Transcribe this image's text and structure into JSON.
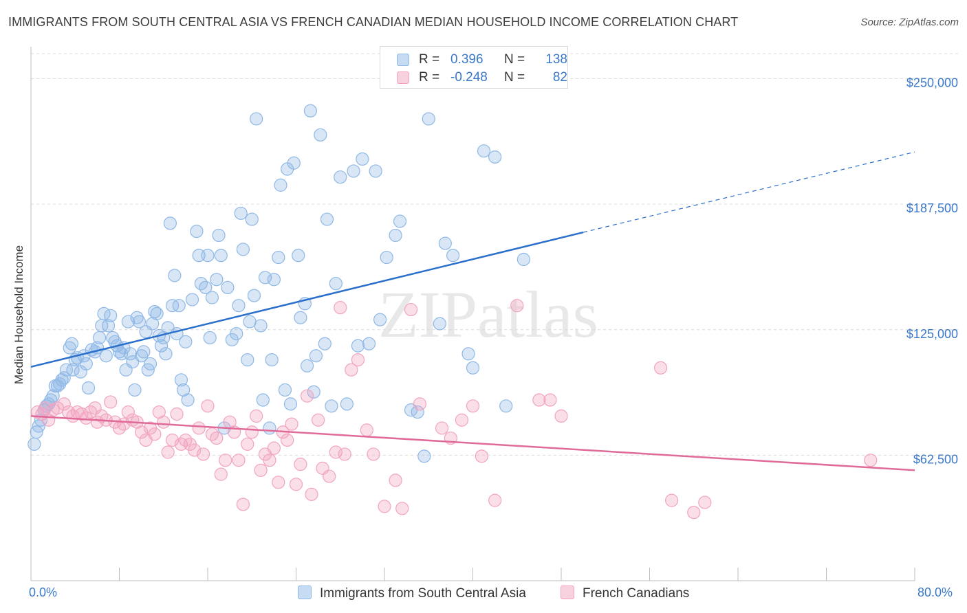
{
  "title": "IMMIGRANTS FROM SOUTH CENTRAL ASIA VS FRENCH CANADIAN MEDIAN HOUSEHOLD INCOME CORRELATION CHART",
  "source": "Source: ZipAtlas.com",
  "watermark": "ZIPatlas",
  "legend": {
    "rows": [
      {
        "r_label": "R =",
        "r_value": "0.396",
        "n_label": "N =",
        "n_value": "138",
        "color": "#8fb8e6"
      },
      {
        "r_label": "R =",
        "r_value": "-0.248",
        "n_label": "N =",
        "n_value": "82",
        "color": "#f2a3bf"
      }
    ]
  },
  "bottom_legend": {
    "series1": "Immigrants from South Central Asia",
    "series2": "French Canadians"
  },
  "chart_data": {
    "type": "scatter",
    "xlabel": "",
    "ylabel": "Median Household Income",
    "xlim": [
      0,
      80
    ],
    "ylim": [
      0,
      262500
    ],
    "x_tick_labels": [
      "0.0%",
      "80.0%"
    ],
    "y_ticks": [
      62500,
      125000,
      187500,
      250000
    ],
    "y_tick_labels": [
      "$62,500",
      "$125,000",
      "$187,500",
      "$250,000"
    ],
    "grid": true,
    "legend_placement": "top-center",
    "series": [
      {
        "name": "Immigrants from South Central Asia",
        "color": "#8fb8e6",
        "line_color": "#2a6fcb",
        "trend": {
          "x0": 0,
          "y0": 106500,
          "x1": 50,
          "y1": 173500,
          "x_dash_end": 80,
          "y_dash_end": 213500
        },
        "points": [
          [
            0.3,
            68
          ],
          [
            0.5,
            74
          ],
          [
            0.7,
            77
          ],
          [
            0.9,
            80
          ],
          [
            1.2,
            85
          ],
          [
            1.4,
            87
          ],
          [
            1.6,
            88
          ],
          [
            1.8,
            90
          ],
          [
            2.0,
            92
          ],
          [
            2.2,
            97
          ],
          [
            2.4,
            97
          ],
          [
            2.6,
            98
          ],
          [
            2.8,
            100
          ],
          [
            3.0,
            101
          ],
          [
            3.2,
            105
          ],
          [
            3.5,
            116
          ],
          [
            3.7,
            118
          ],
          [
            3.8,
            105
          ],
          [
            4.0,
            110
          ],
          [
            4.2,
            111
          ],
          [
            4.5,
            104
          ],
          [
            4.8,
            112
          ],
          [
            5.0,
            108
          ],
          [
            5.2,
            96
          ],
          [
            5.5,
            115
          ],
          [
            5.8,
            114
          ],
          [
            6.0,
            116
          ],
          [
            6.2,
            121
          ],
          [
            6.4,
            127
          ],
          [
            6.6,
            133
          ],
          [
            6.8,
            112
          ],
          [
            7.0,
            127
          ],
          [
            7.2,
            132
          ],
          [
            7.4,
            121
          ],
          [
            7.6,
            119
          ],
          [
            7.8,
            117
          ],
          [
            8.0,
            114
          ],
          [
            8.2,
            113
          ],
          [
            8.4,
            116
          ],
          [
            8.6,
            105
          ],
          [
            8.8,
            129
          ],
          [
            9.0,
            113
          ],
          [
            9.2,
            109
          ],
          [
            9.4,
            95
          ],
          [
            9.6,
            131
          ],
          [
            9.8,
            129
          ],
          [
            10.0,
            112
          ],
          [
            10.2,
            114
          ],
          [
            10.4,
            124
          ],
          [
            10.6,
            105
          ],
          [
            10.8,
            108
          ],
          [
            11.0,
            128
          ],
          [
            11.2,
            134
          ],
          [
            11.4,
            133
          ],
          [
            11.6,
            122
          ],
          [
            11.8,
            117
          ],
          [
            12.0,
            121
          ],
          [
            12.2,
            113
          ],
          [
            12.4,
            126
          ],
          [
            12.6,
            178
          ],
          [
            12.8,
            137
          ],
          [
            13.0,
            152
          ],
          [
            13.2,
            123
          ],
          [
            13.4,
            137
          ],
          [
            13.6,
            100
          ],
          [
            13.8,
            95
          ],
          [
            14.0,
            119
          ],
          [
            14.2,
            90
          ],
          [
            14.6,
            140
          ],
          [
            15.0,
            174
          ],
          [
            15.2,
            162
          ],
          [
            15.4,
            148
          ],
          [
            15.8,
            146
          ],
          [
            16.0,
            162
          ],
          [
            16.2,
            121
          ],
          [
            16.4,
            141
          ],
          [
            16.8,
            150
          ],
          [
            17.0,
            172
          ],
          [
            17.2,
            162
          ],
          [
            17.5,
            76
          ],
          [
            17.8,
            146
          ],
          [
            18.2,
            120
          ],
          [
            18.6,
            123
          ],
          [
            18.8,
            137
          ],
          [
            19.0,
            183
          ],
          [
            19.2,
            165
          ],
          [
            19.6,
            110
          ],
          [
            19.8,
            129
          ],
          [
            20.0,
            180
          ],
          [
            20.2,
            142
          ],
          [
            20.4,
            230
          ],
          [
            20.8,
            127
          ],
          [
            21.0,
            90
          ],
          [
            21.2,
            151
          ],
          [
            21.6,
            76
          ],
          [
            21.8,
            110
          ],
          [
            22.0,
            150
          ],
          [
            22.4,
            161
          ],
          [
            22.6,
            197
          ],
          [
            23.0,
            95
          ],
          [
            23.2,
            205
          ],
          [
            23.5,
            88
          ],
          [
            23.8,
            208
          ],
          [
            24.2,
            162
          ],
          [
            24.4,
            131
          ],
          [
            24.8,
            138
          ],
          [
            25.0,
            107
          ],
          [
            25.3,
            234
          ],
          [
            25.6,
            94
          ],
          [
            25.8,
            112
          ],
          [
            26.2,
            222
          ],
          [
            26.6,
            118
          ],
          [
            26.8,
            180
          ],
          [
            27.2,
            87
          ],
          [
            27.6,
            148
          ],
          [
            28.0,
            201
          ],
          [
            28.6,
            88
          ],
          [
            29.2,
            204
          ],
          [
            29.6,
            117
          ],
          [
            30.0,
            210
          ],
          [
            30.6,
            118
          ],
          [
            31.2,
            204
          ],
          [
            31.6,
            130
          ],
          [
            32.2,
            161
          ],
          [
            33.0,
            172
          ],
          [
            33.4,
            179
          ],
          [
            34.4,
            85
          ],
          [
            35.0,
            84
          ],
          [
            35.6,
            62
          ],
          [
            36.0,
            230
          ],
          [
            37.0,
            128
          ],
          [
            37.5,
            168
          ],
          [
            38.2,
            162
          ],
          [
            39.6,
            113
          ],
          [
            40.0,
            106
          ],
          [
            41.0,
            214
          ],
          [
            42.0,
            211
          ],
          [
            43.0,
            87
          ],
          [
            44.6,
            160
          ]
        ]
      },
      {
        "name": "French Canadians",
        "color": "#f2a3bf",
        "line_color": "#e06b99",
        "trend": {
          "x0": 0,
          "y0": 82000,
          "x1": 80,
          "y1": 55000
        },
        "points": [
          [
            0.6,
            84
          ],
          [
            1.0,
            83
          ],
          [
            1.3,
            86
          ],
          [
            1.6,
            80
          ],
          [
            2.0,
            85
          ],
          [
            2.4,
            86
          ],
          [
            3.0,
            88
          ],
          [
            3.4,
            84
          ],
          [
            3.8,
            82
          ],
          [
            4.2,
            84
          ],
          [
            4.6,
            83
          ],
          [
            5.0,
            81
          ],
          [
            5.4,
            84
          ],
          [
            5.8,
            86
          ],
          [
            6.0,
            79
          ],
          [
            6.4,
            82
          ],
          [
            6.8,
            80
          ],
          [
            7.2,
            89
          ],
          [
            7.6,
            79
          ],
          [
            8.0,
            76
          ],
          [
            8.4,
            78
          ],
          [
            8.8,
            84
          ],
          [
            9.2,
            80
          ],
          [
            9.6,
            79
          ],
          [
            10.0,
            74
          ],
          [
            10.4,
            70
          ],
          [
            10.8,
            76
          ],
          [
            11.2,
            73
          ],
          [
            11.6,
            84
          ],
          [
            12.0,
            79
          ],
          [
            12.4,
            64
          ],
          [
            12.8,
            70
          ],
          [
            13.2,
            83
          ],
          [
            13.6,
            68
          ],
          [
            14.0,
            70
          ],
          [
            14.4,
            68
          ],
          [
            14.8,
            65
          ],
          [
            15.2,
            76
          ],
          [
            15.6,
            63
          ],
          [
            16.0,
            87
          ],
          [
            16.4,
            73
          ],
          [
            16.8,
            71
          ],
          [
            17.2,
            53
          ],
          [
            17.6,
            60
          ],
          [
            18.0,
            79
          ],
          [
            18.4,
            74
          ],
          [
            18.8,
            60
          ],
          [
            19.2,
            38
          ],
          [
            19.6,
            68
          ],
          [
            20.0,
            74
          ],
          [
            20.4,
            82
          ],
          [
            20.8,
            55
          ],
          [
            21.2,
            63
          ],
          [
            21.6,
            60
          ],
          [
            22.0,
            66
          ],
          [
            22.4,
            49
          ],
          [
            22.8,
            74
          ],
          [
            23.2,
            70
          ],
          [
            23.6,
            78
          ],
          [
            24.0,
            48
          ],
          [
            24.4,
            58
          ],
          [
            25.0,
            92
          ],
          [
            25.4,
            43
          ],
          [
            26.0,
            80
          ],
          [
            26.4,
            56
          ],
          [
            27.0,
            52
          ],
          [
            27.6,
            64
          ],
          [
            28.0,
            136
          ],
          [
            28.4,
            63
          ],
          [
            29.0,
            105
          ],
          [
            29.6,
            110
          ],
          [
            30.4,
            75
          ],
          [
            31.0,
            63
          ],
          [
            32.0,
            37
          ],
          [
            33.0,
            50
          ],
          [
            33.6,
            36
          ],
          [
            34.4,
            135
          ],
          [
            35.2,
            88
          ],
          [
            37.2,
            76
          ],
          [
            38.0,
            71
          ],
          [
            39.0,
            80
          ],
          [
            40.0,
            87
          ],
          [
            40.8,
            62
          ],
          [
            42.0,
            40
          ],
          [
            44.0,
            137
          ],
          [
            46.0,
            90
          ],
          [
            47.0,
            90
          ],
          [
            48.0,
            82
          ],
          [
            57.0,
            106
          ],
          [
            58.0,
            40
          ],
          [
            60.0,
            34
          ],
          [
            61.0,
            39
          ],
          [
            76.0,
            60
          ]
        ]
      }
    ]
  }
}
